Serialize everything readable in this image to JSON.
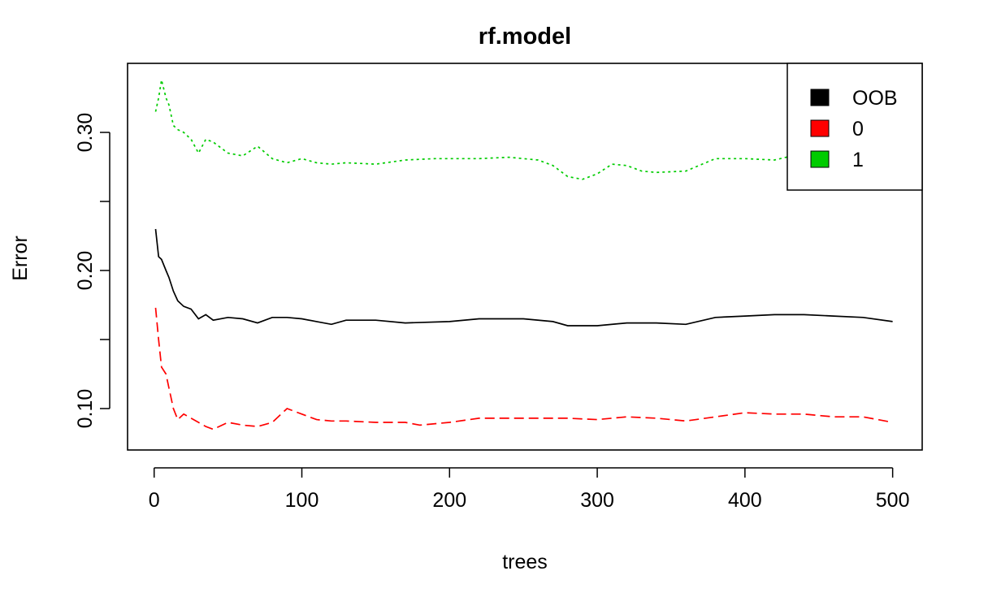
{
  "chart_data": {
    "type": "line",
    "title": "rf.model",
    "xlabel": "trees",
    "ylabel": "Error",
    "xlim": [
      -18,
      520
    ],
    "ylim": [
      0.07,
      0.35
    ],
    "x_ticks": [
      0,
      100,
      200,
      300,
      400,
      500
    ],
    "x_tick_labels": [
      "0",
      "100",
      "200",
      "300",
      "400",
      "500"
    ],
    "y_ticks": [
      0.1,
      0.15,
      0.2,
      0.25,
      0.3
    ],
    "y_tick_labels": [
      "0.10",
      "",
      "0.20",
      "",
      "0.30"
    ],
    "grid": false,
    "legend_position": "top-right",
    "series": [
      {
        "name": "OOB",
        "color": "#000000",
        "dash": "solid",
        "points": [
          [
            1,
            0.23
          ],
          [
            3,
            0.21
          ],
          [
            5,
            0.208
          ],
          [
            8,
            0.2
          ],
          [
            10,
            0.195
          ],
          [
            13,
            0.185
          ],
          [
            16,
            0.178
          ],
          [
            20,
            0.174
          ],
          [
            25,
            0.172
          ],
          [
            30,
            0.165
          ],
          [
            35,
            0.168
          ],
          [
            40,
            0.164
          ],
          [
            50,
            0.166
          ],
          [
            60,
            0.165
          ],
          [
            70,
            0.162
          ],
          [
            80,
            0.166
          ],
          [
            90,
            0.166
          ],
          [
            100,
            0.165
          ],
          [
            110,
            0.163
          ],
          [
            120,
            0.161
          ],
          [
            130,
            0.164
          ],
          [
            150,
            0.164
          ],
          [
            170,
            0.162
          ],
          [
            200,
            0.163
          ],
          [
            220,
            0.165
          ],
          [
            250,
            0.165
          ],
          [
            270,
            0.163
          ],
          [
            280,
            0.16
          ],
          [
            300,
            0.16
          ],
          [
            320,
            0.162
          ],
          [
            340,
            0.162
          ],
          [
            360,
            0.161
          ],
          [
            380,
            0.166
          ],
          [
            400,
            0.167
          ],
          [
            420,
            0.168
          ],
          [
            440,
            0.168
          ],
          [
            460,
            0.167
          ],
          [
            480,
            0.166
          ],
          [
            500,
            0.163
          ]
        ]
      },
      {
        "name": "0",
        "color": "#ff0000",
        "dash": "dashed",
        "points": [
          [
            1,
            0.173
          ],
          [
            3,
            0.15
          ],
          [
            5,
            0.13
          ],
          [
            8,
            0.125
          ],
          [
            10,
            0.115
          ],
          [
            13,
            0.1
          ],
          [
            16,
            0.092
          ],
          [
            20,
            0.096
          ],
          [
            25,
            0.093
          ],
          [
            30,
            0.09
          ],
          [
            35,
            0.087
          ],
          [
            40,
            0.085
          ],
          [
            50,
            0.09
          ],
          [
            60,
            0.088
          ],
          [
            70,
            0.087
          ],
          [
            80,
            0.09
          ],
          [
            90,
            0.1
          ],
          [
            100,
            0.096
          ],
          [
            110,
            0.092
          ],
          [
            120,
            0.091
          ],
          [
            130,
            0.091
          ],
          [
            150,
            0.09
          ],
          [
            170,
            0.09
          ],
          [
            180,
            0.088
          ],
          [
            200,
            0.09
          ],
          [
            220,
            0.093
          ],
          [
            240,
            0.093
          ],
          [
            260,
            0.093
          ],
          [
            280,
            0.093
          ],
          [
            300,
            0.092
          ],
          [
            320,
            0.094
          ],
          [
            340,
            0.093
          ],
          [
            360,
            0.091
          ],
          [
            380,
            0.094
          ],
          [
            400,
            0.097
          ],
          [
            420,
            0.096
          ],
          [
            440,
            0.096
          ],
          [
            460,
            0.094
          ],
          [
            480,
            0.094
          ],
          [
            500,
            0.09
          ]
        ]
      },
      {
        "name": "1",
        "color": "#00cc00",
        "dash": "dotted",
        "points": [
          [
            1,
            0.315
          ],
          [
            3,
            0.325
          ],
          [
            5,
            0.338
          ],
          [
            8,
            0.325
          ],
          [
            10,
            0.32
          ],
          [
            13,
            0.305
          ],
          [
            16,
            0.302
          ],
          [
            20,
            0.3
          ],
          [
            25,
            0.295
          ],
          [
            30,
            0.285
          ],
          [
            35,
            0.295
          ],
          [
            40,
            0.293
          ],
          [
            50,
            0.285
          ],
          [
            60,
            0.283
          ],
          [
            70,
            0.29
          ],
          [
            80,
            0.281
          ],
          [
            90,
            0.278
          ],
          [
            100,
            0.281
          ],
          [
            110,
            0.278
          ],
          [
            120,
            0.277
          ],
          [
            130,
            0.278
          ],
          [
            150,
            0.277
          ],
          [
            170,
            0.28
          ],
          [
            190,
            0.281
          ],
          [
            200,
            0.281
          ],
          [
            220,
            0.281
          ],
          [
            240,
            0.282
          ],
          [
            260,
            0.28
          ],
          [
            270,
            0.276
          ],
          [
            280,
            0.268
          ],
          [
            290,
            0.266
          ],
          [
            300,
            0.27
          ],
          [
            310,
            0.277
          ],
          [
            320,
            0.276
          ],
          [
            330,
            0.272
          ],
          [
            340,
            0.271
          ],
          [
            360,
            0.272
          ],
          [
            380,
            0.281
          ],
          [
            400,
            0.281
          ],
          [
            420,
            0.28
          ],
          [
            440,
            0.285
          ],
          [
            460,
            0.287
          ],
          [
            480,
            0.289
          ],
          [
            500,
            0.291
          ]
        ]
      }
    ]
  }
}
